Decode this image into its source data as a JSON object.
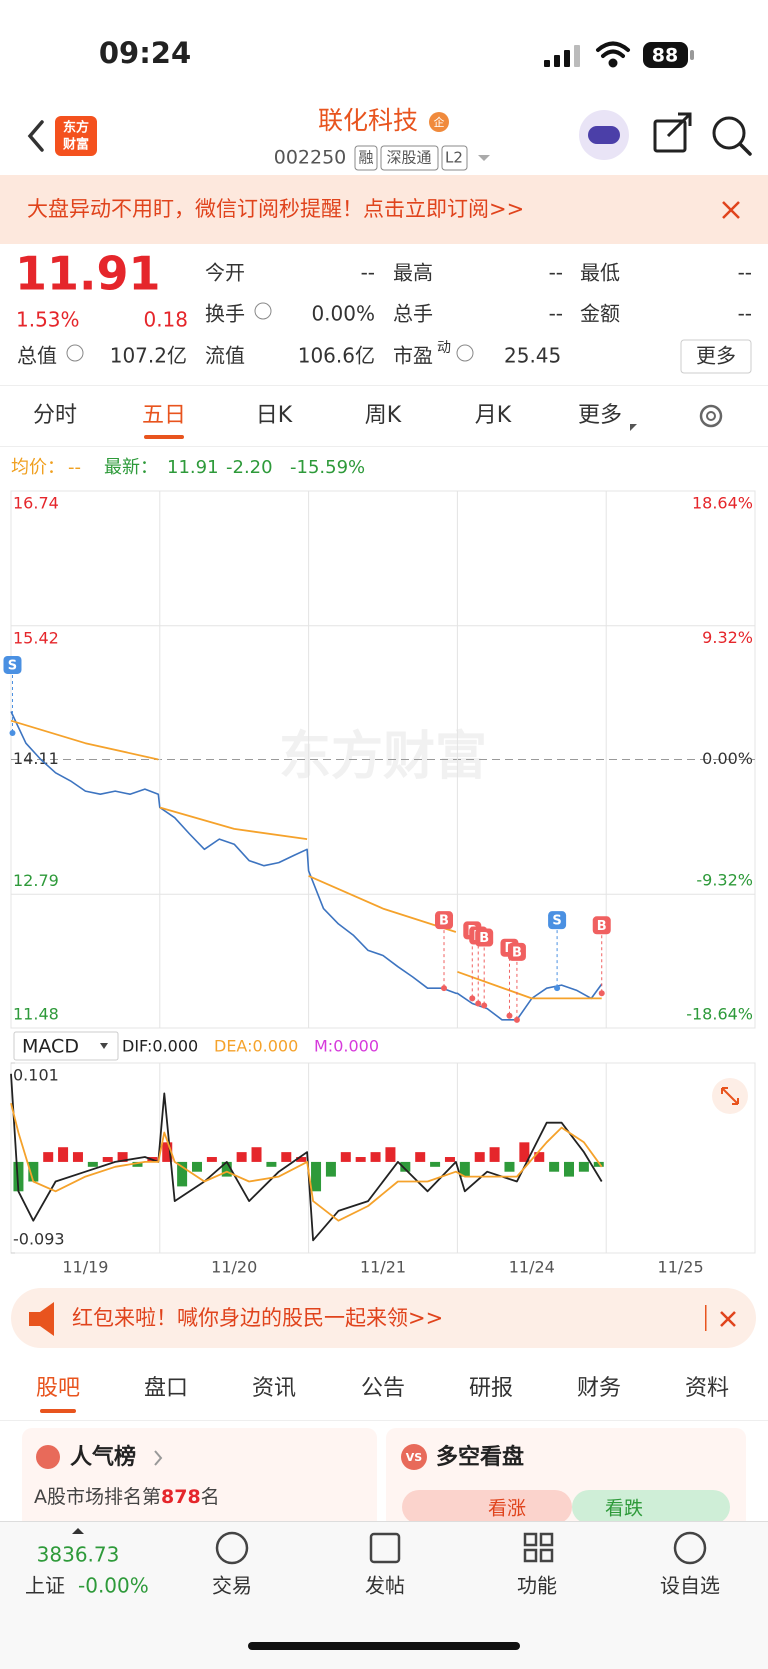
{
  "status": {
    "time": "09:24",
    "battery": "88"
  },
  "header": {
    "logo": [
      "东方",
      "财富"
    ],
    "title": "联化科技",
    "badge": "企",
    "code": "002250",
    "tags": [
      "融",
      "深股通",
      "L2"
    ]
  },
  "banner": "大盘异动不用盯，微信订阅秒提醒！点击立即订阅>>",
  "quote": {
    "price": "11.91",
    "percent": "1.53%",
    "change": "0.18",
    "more": "更多",
    "fields": [
      {
        "label": "今开",
        "value": "--"
      },
      {
        "label": "最高",
        "value": "--"
      },
      {
        "label": "最低",
        "value": "--"
      },
      {
        "label": "换手",
        "value": "0.00%"
      },
      {
        "label": "总手",
        "value": "--"
      },
      {
        "label": "金额",
        "value": "--"
      },
      {
        "label": "总值",
        "value": "107.2亿"
      },
      {
        "label": "流值",
        "value": "106.6亿"
      },
      {
        "label": "市盈",
        "sup": "动",
        "value": "25.45"
      }
    ]
  },
  "tabs": {
    "items": [
      "分时",
      "五日",
      "日K",
      "周K",
      "月K",
      "更多"
    ],
    "active": 1
  },
  "chart_data": [
    {
      "type": "line",
      "watermark": "东方财富",
      "legend": {
        "avg_value": "--",
        "latest_value": "11.91",
        "change": "-2.20",
        "change_pct": "-15.59%"
      },
      "xlim": [
        0,
        5
      ],
      "ylim": [
        11.48,
        16.74
      ],
      "yticks": [
        11.48,
        12.79,
        14.11,
        15.42,
        16.74
      ],
      "y2lim": [
        -18.64,
        18.64
      ],
      "y2ticks": [
        {
          "value": -18.64,
          "label": "-18.64%"
        },
        {
          "value": -9.32,
          "label": "-9.32%"
        },
        {
          "value": 0,
          "label": "0.00%"
        },
        {
          "value": 9.32,
          "label": "9.32%"
        },
        {
          "value": 18.64,
          "label": "18.64%"
        }
      ],
      "series": [
        {
          "name": "最新：",
          "color": "#3d74c0",
          "x": [
            0,
            0.1,
            0.2,
            0.3,
            0.4,
            0.5,
            0.6,
            0.7,
            0.8,
            0.9,
            0.99,
            1.0,
            1.1,
            1.2,
            1.3,
            1.4,
            1.5,
            1.6,
            1.7,
            1.8,
            1.9,
            1.99,
            2.0,
            2.1,
            2.2,
            2.3,
            2.4,
            2.5,
            2.6,
            2.7,
            2.8,
            2.9,
            2.99,
            3.0,
            3.1,
            3.2,
            3.3,
            3.4,
            3.5,
            3.6,
            3.7,
            3.8,
            3.9,
            3.97
          ],
          "values": [
            14.58,
            14.27,
            14.11,
            13.98,
            13.9,
            13.8,
            13.77,
            13.8,
            13.77,
            13.82,
            13.77,
            13.64,
            13.54,
            13.38,
            13.23,
            13.33,
            13.28,
            13.12,
            13.07,
            13.1,
            13.17,
            13.23,
            13.02,
            12.65,
            12.5,
            12.39,
            12.24,
            12.19,
            12.08,
            11.98,
            11.87,
            11.87,
            11.82,
            11.82,
            11.72,
            11.67,
            11.56,
            11.56,
            11.77,
            11.87,
            11.9,
            11.85,
            11.77,
            11.91
          ]
        },
        {
          "name": "均价：",
          "color": "#f5a22b",
          "x": [
            0,
            0.5,
            0.99,
            0.995,
            1.0,
            1.5,
            1.99,
            1.995,
            2.0,
            2.5,
            2.99,
            2.995,
            3.0,
            3.5,
            3.97
          ],
          "values": [
            14.49,
            14.27,
            14.11,
            null,
            13.64,
            13.43,
            13.33,
            null,
            12.97,
            12.65,
            12.42,
            null,
            12.03,
            11.77,
            11.77
          ]
        }
      ],
      "markers": [
        {
          "label": "S",
          "x": 0.01,
          "value": 14.37
        },
        {
          "label": "B",
          "x": 2.91,
          "value": 11.87
        },
        {
          "label": "B",
          "x": 3.1,
          "value": 11.77
        },
        {
          "label": "B",
          "x": 3.14,
          "value": 11.72
        },
        {
          "label": "B",
          "x": 3.18,
          "value": 11.7
        },
        {
          "label": "B",
          "x": 3.35,
          "value": 11.6
        },
        {
          "label": "B",
          "x": 3.4,
          "value": 11.56
        },
        {
          "label": "S",
          "x": 3.67,
          "value": 11.87
        },
        {
          "label": "B",
          "x": 3.97,
          "value": 11.82
        }
      ]
    },
    {
      "type": "macd",
      "title": "MACD",
      "xlim": [
        0,
        5
      ],
      "ylim": [
        -0.093,
        0.101
      ],
      "yticks": [
        -0.093,
        0.101
      ],
      "xticks": [
        {
          "value": 0.5,
          "label": "11/19"
        },
        {
          "value": 1.5,
          "label": "11/20"
        },
        {
          "value": 2.5,
          "label": "11/21"
        },
        {
          "value": 3.5,
          "label": "11/24"
        },
        {
          "value": 4.5,
          "label": "11/25"
        }
      ],
      "series": [
        {
          "name": "DIF:0.000",
          "color": "#222222",
          "x": [
            0,
            0.05,
            0.15,
            0.3,
            0.5,
            0.7,
            0.9,
            0.99,
            1.03,
            1.1,
            1.3,
            1.45,
            1.6,
            1.8,
            1.99,
            2.03,
            2.2,
            2.4,
            2.6,
            2.8,
            2.99,
            3.05,
            3.2,
            3.4,
            3.6,
            3.7,
            3.85,
            3.97
          ],
          "values": [
            0.09,
            -0.03,
            -0.06,
            -0.02,
            -0.01,
            0.0,
            0.005,
            0.0,
            0.07,
            -0.04,
            -0.02,
            0.0,
            -0.04,
            -0.01,
            0.01,
            -0.08,
            -0.05,
            -0.04,
            0.0,
            -0.03,
            0.0,
            -0.03,
            -0.01,
            -0.02,
            0.04,
            0.04,
            0.01,
            -0.02
          ]
        },
        {
          "name": "DEA:0.000",
          "color": "#f5a22b",
          "x": [
            0,
            0.05,
            0.15,
            0.3,
            0.5,
            0.7,
            0.9,
            0.99,
            1.03,
            1.1,
            1.3,
            1.45,
            1.6,
            1.8,
            1.99,
            2.03,
            2.2,
            2.4,
            2.6,
            2.8,
            2.99,
            3.05,
            3.2,
            3.4,
            3.6,
            3.7,
            3.85,
            3.97
          ],
          "values": [
            0.06,
            0.03,
            -0.02,
            -0.03,
            -0.015,
            -0.005,
            0.0,
            0.0,
            0.03,
            0.0,
            -0.02,
            -0.01,
            -0.02,
            -0.015,
            0.0,
            -0.04,
            -0.06,
            -0.045,
            -0.02,
            -0.02,
            -0.01,
            -0.015,
            -0.015,
            -0.015,
            0.02,
            0.035,
            0.02,
            -0.005
          ]
        },
        {
          "name": "M:0.000",
          "color": "#d63adb",
          "pos_color": "#e5262b",
          "neg_color": "#2e9a3a",
          "x": [
            0.05,
            0.15,
            0.25,
            0.35,
            0.45,
            0.55,
            0.65,
            0.75,
            0.85,
            0.95,
            1.05,
            1.15,
            1.25,
            1.35,
            1.45,
            1.55,
            1.65,
            1.75,
            1.85,
            1.95,
            2.05,
            2.15,
            2.25,
            2.35,
            2.45,
            2.55,
            2.65,
            2.75,
            2.85,
            2.95,
            3.05,
            3.15,
            3.25,
            3.35,
            3.45,
            3.55,
            3.65,
            3.75,
            3.85,
            3.95
          ],
          "values": [
            -0.03,
            -0.02,
            0.01,
            0.015,
            0.01,
            -0.005,
            0.005,
            0.01,
            -0.005,
            0.005,
            0.02,
            -0.025,
            -0.01,
            0.005,
            -0.015,
            0.01,
            0.015,
            -0.005,
            0.01,
            0.005,
            -0.03,
            -0.015,
            0.01,
            0.005,
            0.01,
            0.015,
            -0.01,
            0.01,
            -0.005,
            0.005,
            -0.015,
            0.01,
            0.015,
            -0.01,
            0.02,
            0.01,
            -0.01,
            -0.015,
            -0.01,
            -0.005
          ]
        }
      ]
    }
  ],
  "promo": "红包来啦！喊你身边的股民一起来领>>",
  "section_tabs": {
    "items": [
      "股吧",
      "盘口",
      "资讯",
      "公告",
      "研报",
      "财务",
      "资料"
    ],
    "active": 0
  },
  "cards": {
    "popularity": {
      "title": "人气榜",
      "text": "A股市场排名第",
      "rank": "878",
      "unit": "名"
    },
    "sentiment": {
      "title": "多空看盘",
      "badge": "VS",
      "up": "看涨",
      "down": "看跌"
    }
  },
  "bottom_nav": {
    "index_value": "3836.73",
    "index_name": "上证",
    "index_change": "-0.00%",
    "items": [
      "交易",
      "发帖",
      "功能",
      "设自选"
    ]
  }
}
